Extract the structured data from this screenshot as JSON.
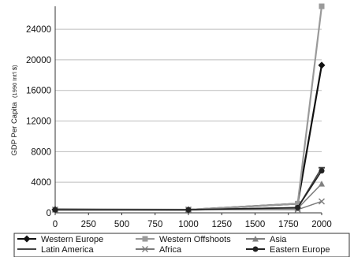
{
  "chart_data": {
    "type": "line",
    "ylabel_main": "GDP Per Capita",
    "ylabel_unit": "(1990 Int'l $)",
    "xlabel": "",
    "xlim": [
      0,
      2000
    ],
    "ylim": [
      0,
      27000
    ],
    "xticks": [
      0,
      250,
      500,
      750,
      1000,
      1250,
      1500,
      1750,
      2000
    ],
    "yticks": [
      0,
      4000,
      8000,
      12000,
      16000,
      20000,
      24000
    ],
    "xtick_labels": [
      "0",
      "250",
      "500",
      "750",
      "1000",
      "1250",
      "1500",
      "1750",
      "2000"
    ],
    "ytick_labels": [
      "0",
      "4000",
      "8000",
      "12000",
      "16000",
      "20000",
      "24000"
    ],
    "x": [
      0,
      1000,
      1820,
      2000
    ],
    "series": [
      {
        "name": "Western Europe",
        "values": [
          450,
          400,
          1200,
          19300
        ],
        "color": "#111111",
        "marker": "diamond",
        "width": 2.2
      },
      {
        "name": "Western Offshoots",
        "values": [
          400,
          400,
          1200,
          27000
        ],
        "color": "#9a9a9a",
        "marker": "square",
        "width": 2.2
      },
      {
        "name": "Asia",
        "values": [
          450,
          450,
          580,
          3800
        ],
        "color": "#808080",
        "marker": "triangle",
        "width": 1.6
      },
      {
        "name": "Latin America",
        "values": [
          400,
          400,
          690,
          5900
        ],
        "color": "#444444",
        "marker": "dash",
        "width": 1.6
      },
      {
        "name": "Africa",
        "values": [
          430,
          420,
          420,
          1500
        ],
        "color": "#7a7a7a",
        "marker": "x",
        "width": 1.4
      },
      {
        "name": "Eastern Europe",
        "values": [
          400,
          400,
          680,
          5500
        ],
        "color": "#222222",
        "marker": "circle",
        "width": 1.6
      }
    ],
    "legend_position": "bottom",
    "grid": "horizontal"
  }
}
